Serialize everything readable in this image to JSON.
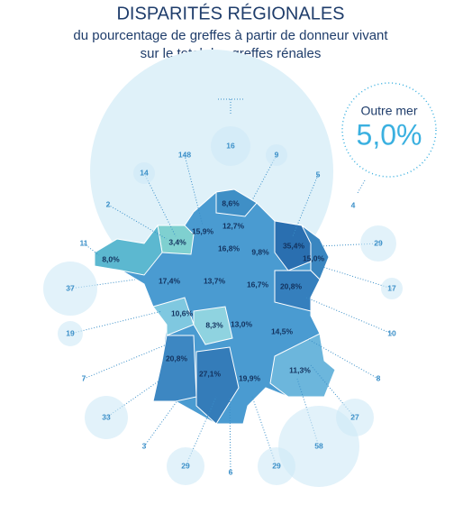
{
  "header": {
    "title": "DISPARITÉS RÉGIONALES",
    "subtitle": [
      "du pourcentage de greffes à partir de donneur vivant",
      "sur le total des greffes rénales"
    ]
  },
  "outre_mer": {
    "label": "Outre mer",
    "value": "5,0%"
  },
  "regions": [
    {
      "label": "8,6%"
    },
    {
      "label": "12,7%"
    },
    {
      "label": "15,9%"
    },
    {
      "label": "3,4%"
    },
    {
      "label": "16,8%"
    },
    {
      "label": "9,8%"
    },
    {
      "label": "35,4%"
    },
    {
      "label": "15,0%"
    },
    {
      "label": "8,0%"
    },
    {
      "label": "17,4%"
    },
    {
      "label": "13,7%"
    },
    {
      "label": "16,7%"
    },
    {
      "label": "20,8%"
    },
    {
      "label": "10,6%"
    },
    {
      "label": "8,3%"
    },
    {
      "label": "13,0%"
    },
    {
      "label": "14,5%"
    },
    {
      "label": "20,8%"
    },
    {
      "label": "27,1%"
    },
    {
      "label": "19,9%"
    },
    {
      "label": "11,3%"
    }
  ],
  "centers": [
    16,
    148,
    14,
    9,
    5,
    4,
    2,
    11,
    29,
    37,
    17,
    19,
    10,
    7,
    8,
    33,
    27,
    3,
    58,
    29,
    6,
    29
  ]
}
